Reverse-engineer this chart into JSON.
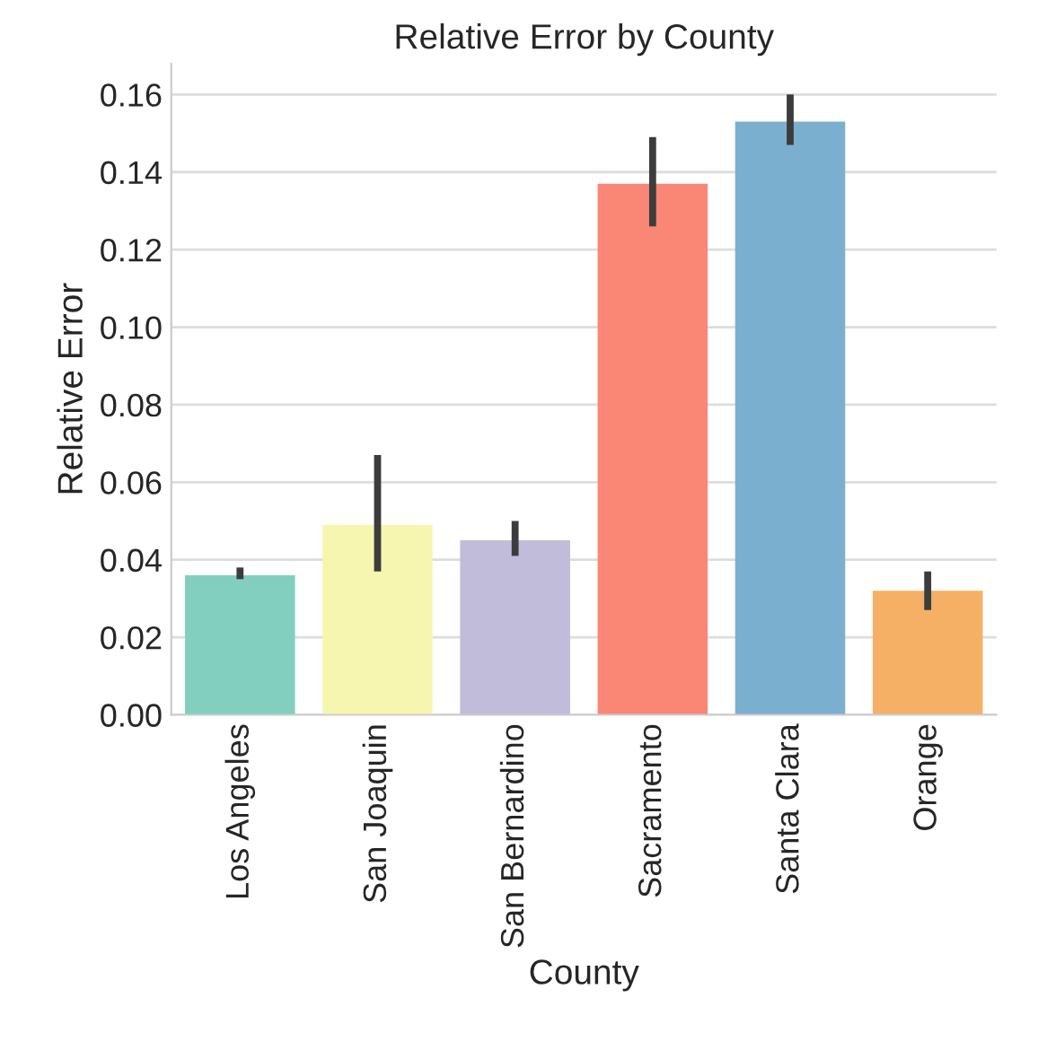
{
  "chart_data": {
    "type": "bar",
    "title": "Relative Error by County",
    "xlabel": "County",
    "ylabel": "Relative Error",
    "categories": [
      "Los Angeles",
      "San Joaquin",
      "San Bernardino",
      "Sacramento",
      "Santa Clara",
      "Orange"
    ],
    "values": [
      0.036,
      0.049,
      0.045,
      0.137,
      0.153,
      0.032
    ],
    "errors": [
      [
        0.035,
        0.038
      ],
      [
        0.037,
        0.067
      ],
      [
        0.041,
        0.05
      ],
      [
        0.126,
        0.149
      ],
      [
        0.147,
        0.16
      ],
      [
        0.027,
        0.037
      ]
    ],
    "colors": [
      "#82cfc0",
      "#f6f6b0",
      "#c0bcda",
      "#fa8676",
      "#7bafd0",
      "#f5b066"
    ],
    "ylim": [
      0,
      0.168
    ],
    "yticks": [
      {
        "value": 0,
        "label": "0.00"
      },
      {
        "value": 0.02,
        "label": "0.02"
      },
      {
        "value": 0.04,
        "label": "0.04"
      },
      {
        "value": 0.06,
        "label": "0.06"
      },
      {
        "value": 0.08,
        "label": "0.08"
      },
      {
        "value": 0.1,
        "label": "0.10"
      },
      {
        "value": 0.12,
        "label": "0.12"
      },
      {
        "value": 0.14,
        "label": "0.14"
      },
      {
        "value": 0.16,
        "label": "0.16"
      }
    ],
    "grid": "y"
  }
}
